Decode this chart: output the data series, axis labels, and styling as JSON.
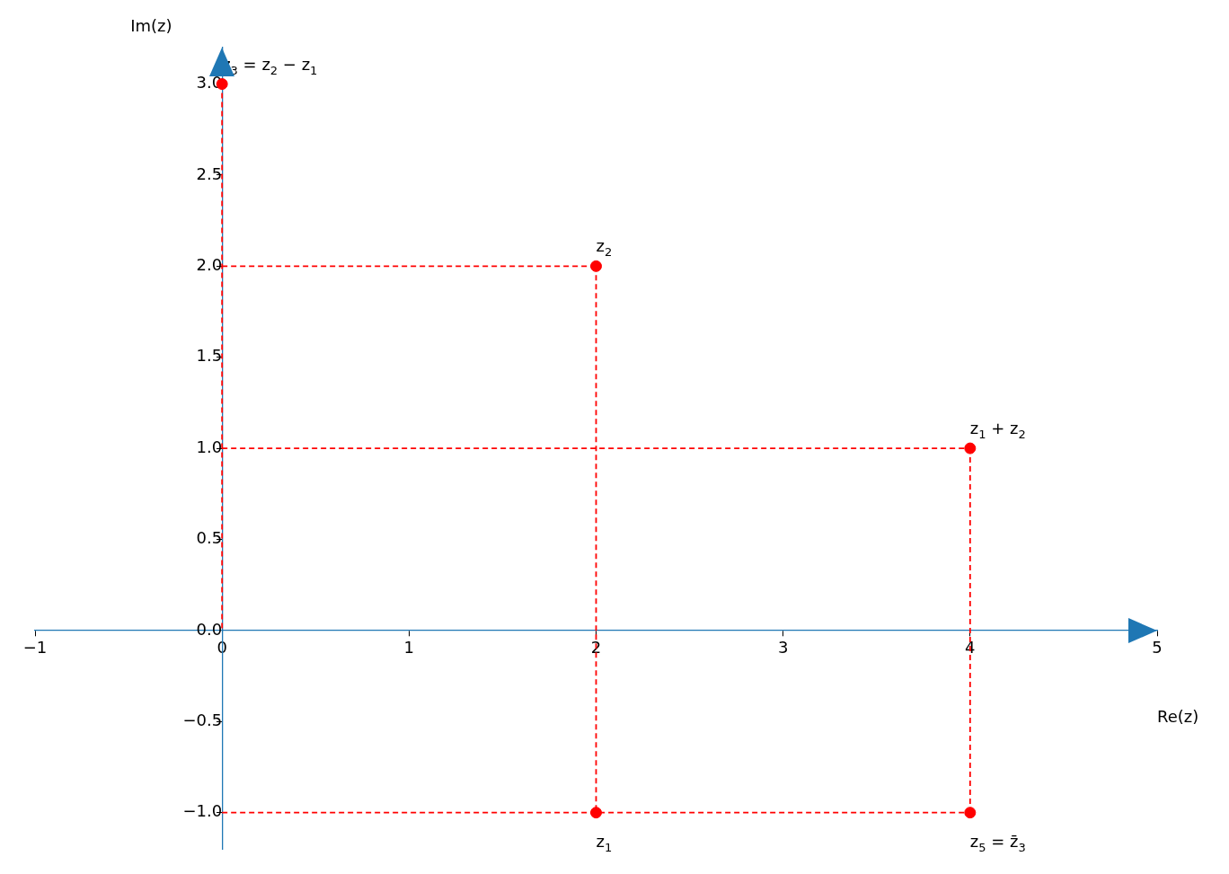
{
  "chart_data": {
    "type": "scatter",
    "xlabel": "Re(z)",
    "ylabel": "Im(z)",
    "marker": "circle",
    "series": [
      {
        "type": "line",
        "x": [
          0,
          2
        ],
        "values": [
          2,
          2
        ],
        "color": "#ff0000",
        "line_style": "dashed",
        "marker": "none"
      },
      {
        "type": "line",
        "x": [
          2,
          2
        ],
        "values": [
          2,
          -1
        ],
        "color": "#ff0000",
        "line_style": "dashed",
        "marker": "none"
      },
      {
        "type": "line",
        "x": [
          0,
          4
        ],
        "values": [
          1,
          1
        ],
        "color": "#ff0000",
        "line_style": "dashed",
        "marker": "none"
      },
      {
        "type": "line",
        "x": [
          4,
          4
        ],
        "values": [
          1,
          -1
        ],
        "color": "#ff0000",
        "line_style": "dashed",
        "marker": "none"
      },
      {
        "type": "line",
        "x": [
          0,
          4
        ],
        "values": [
          -1,
          -1
        ],
        "color": "#ff0000",
        "line_style": "dashed",
        "marker": "none"
      },
      {
        "type": "line",
        "x": [
          0,
          0
        ],
        "values": [
          3,
          0
        ],
        "color": "#ff0000",
        "line_style": "dashed",
        "marker": "none"
      },
      {
        "x": [
          2,
          2,
          4,
          0,
          4
        ],
        "values": [
          -1,
          2,
          1,
          3,
          -1
        ],
        "color": "#ff0000"
      }
    ],
    "annotations": [
      {
        "text": "z$_{1}$",
        "x": 2,
        "y": -1
      },
      {
        "text": "z$_{2}$",
        "x": 2,
        "y": 2
      },
      {
        "text": "z$_{1}$ + z$_{2}$",
        "x": 4,
        "y": 1
      },
      {
        "text": "z$_{3}$ = z$_{2}$ − z$_{1}$",
        "x": 0,
        "y": 3
      },
      {
        "text": "z$_{5}$ = z̄$_{3}$",
        "x": 4,
        "y": -1
      }
    ],
    "xlim": [
      -1,
      5
    ],
    "ylim": [
      -1.2,
      3.2
    ],
    "xticks": [
      {
        "value": -1,
        "label": "−1"
      },
      0,
      1,
      2,
      3,
      4,
      5
    ],
    "yticks": [
      {
        "value": -1,
        "label": "−1.0"
      },
      {
        "value": -0.5,
        "label": "−0.5"
      },
      {
        "value": 0,
        "label": "0.0"
      },
      {
        "value": 0.5,
        "label": "0.5"
      },
      {
        "value": 1,
        "label": "1.0"
      },
      {
        "value": 1.5,
        "label": "1.5"
      },
      {
        "value": 2,
        "label": "2.0"
      },
      {
        "value": 2.5,
        "label": "2.5"
      },
      {
        "value": 3,
        "label": "3.0"
      }
    ],
    "grid": false,
    "legend": false
  }
}
